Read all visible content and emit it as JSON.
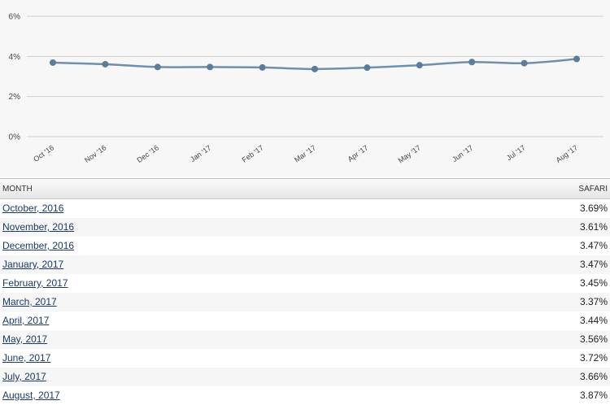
{
  "chart_data": {
    "type": "line",
    "x": [
      "Oct '16",
      "Nov '16",
      "Dec '16",
      "Jan '17",
      "Feb '17",
      "Mar '17",
      "Apr '17",
      "May '17",
      "Jun '17",
      "Jul '17",
      "Aug '17"
    ],
    "series": [
      {
        "values": [
          3.69,
          3.61,
          3.47,
          3.47,
          3.45,
          3.37,
          3.44,
          3.56,
          3.72,
          3.66,
          3.87
        ]
      }
    ],
    "ylim": [
      0,
      6
    ],
    "yticks": [
      "0%",
      "2%",
      "4%",
      "6%"
    ],
    "grid": true,
    "line_color": "#6f8fac",
    "point_color": "#5b7c9b"
  },
  "table": {
    "headers": {
      "month": "MONTH",
      "safari": "SAFARI"
    },
    "rows": [
      {
        "month": "October, 2016",
        "value": "3.69%"
      },
      {
        "month": "November, 2016",
        "value": "3.61%"
      },
      {
        "month": "December, 2016",
        "value": "3.47%"
      },
      {
        "month": "January, 2017",
        "value": "3.47%"
      },
      {
        "month": "February, 2017",
        "value": "3.45%"
      },
      {
        "month": "March, 2017",
        "value": "3.37%"
      },
      {
        "month": "April, 2017",
        "value": "3.44%"
      },
      {
        "month": "May, 2017",
        "value": "3.56%"
      },
      {
        "month": "June, 2017",
        "value": "3.72%"
      },
      {
        "month": "July, 2017",
        "value": "3.66%"
      },
      {
        "month": "August, 2017",
        "value": "3.87%"
      }
    ]
  }
}
